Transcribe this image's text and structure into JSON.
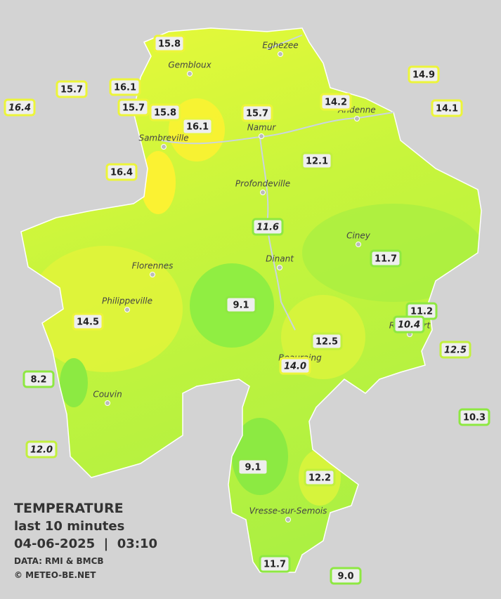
{
  "legend": {
    "title": "TEMPERATURE",
    "subtitle": "last 10 minutes",
    "datetime": "04-06-2025  |  03:10",
    "source": "DATA: RMI & BMCB",
    "copyright": "© METEO-BE.NET"
  },
  "towns": [
    "Eghezee",
    "Gembloux",
    "Andenne",
    "Namur",
    "Sambreville",
    "Profondeville",
    "Ciney",
    "Dinant",
    "Florennes",
    "Philippeville",
    "Beauraing",
    "Rochefort",
    "Couvin",
    "Vresse-sur-Semois"
  ],
  "stations": [
    "15.8",
    "16.1",
    "15.7",
    "16.4",
    "15.7",
    "15.8",
    "16.1",
    "15.7",
    "14.2",
    "14.9",
    "14.1",
    "16.4",
    "12.1",
    "11.6",
    "11.7",
    "9.1",
    "11.2",
    "10.4",
    "14.5",
    "12.5",
    "14.0",
    "12.5",
    "8.2",
    "10.3",
    "12.0",
    "9.1",
    "12.2",
    "11.7",
    "9.0"
  ]
}
